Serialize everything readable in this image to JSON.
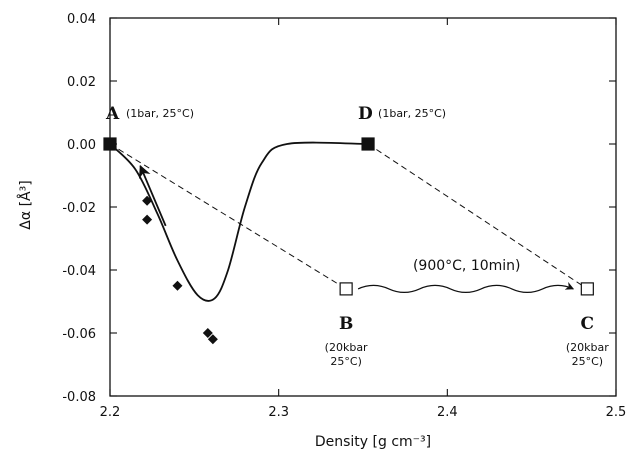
{
  "chart_data": {
    "type": "scatter",
    "xlabel": "Density [g cm⁻³]",
    "ylabel": "Δα [Å³]",
    "xlim": [
      2.2,
      2.5
    ],
    "ylim": [
      -0.08,
      0.04
    ],
    "xticks": [
      2.2,
      2.3,
      2.4,
      2.5
    ],
    "xtick_labels": [
      "2.2",
      "2.3",
      "2.4",
      "2.5"
    ],
    "yticks": [
      0.04,
      0.02,
      0.0,
      -0.02,
      -0.04,
      -0.06,
      -0.08
    ],
    "ytick_labels": [
      "0.04",
      "0.02",
      "0.00",
      "-0.02",
      "-0.04",
      "-0.06",
      "-0.08"
    ],
    "labeled_points": [
      {
        "letter": "A",
        "x": 2.2,
        "y": 0.0,
        "marker": "filled-square",
        "conditions": [
          "(1bar, 25°C)"
        ],
        "label_side": "right"
      },
      {
        "letter": "B",
        "x": 2.34,
        "y": -0.046,
        "marker": "open-square",
        "conditions": [
          "(20kbar",
          "25°C)"
        ],
        "label_side": "below"
      },
      {
        "letter": "C",
        "x": 2.483,
        "y": -0.046,
        "marker": "open-square",
        "conditions": [
          "(20kbar",
          "25°C)"
        ],
        "label_side": "below"
      },
      {
        "letter": "D",
        "x": 2.353,
        "y": 0.0,
        "marker": "filled-square",
        "conditions": [
          "(1bar, 25°C)"
        ],
        "label_side": "right"
      }
    ],
    "diamond_points": [
      {
        "x": 2.222,
        "y": -0.018
      },
      {
        "x": 2.222,
        "y": -0.024
      },
      {
        "x": 2.24,
        "y": -0.045
      },
      {
        "x": 2.258,
        "y": -0.06
      },
      {
        "x": 2.261,
        "y": -0.062
      }
    ],
    "smooth_curve": [
      [
        2.2,
        0.0
      ],
      [
        2.215,
        -0.008
      ],
      [
        2.228,
        -0.022
      ],
      [
        2.24,
        -0.037
      ],
      [
        2.252,
        -0.048
      ],
      [
        2.262,
        -0.049
      ],
      [
        2.27,
        -0.04
      ],
      [
        2.28,
        -0.02
      ],
      [
        2.29,
        -0.006
      ],
      [
        2.305,
        0.0
      ],
      [
        2.353,
        0.0
      ]
    ],
    "dashed_paths": [
      [
        [
          2.2,
          0.0
        ],
        [
          2.34,
          -0.046
        ]
      ],
      [
        [
          2.353,
          0.0
        ],
        [
          2.483,
          -0.046
        ]
      ]
    ],
    "arrow": {
      "from": [
        2.233,
        -0.026
      ],
      "to": [
        2.218,
        -0.007
      ]
    },
    "process_label": "(900°C, 10min)",
    "wavy_arrow": {
      "from": [
        2.34,
        -0.046
      ],
      "to": [
        2.483,
        -0.046
      ]
    },
    "colors": {
      "ink": "#111111",
      "background": "#ffffff"
    }
  }
}
